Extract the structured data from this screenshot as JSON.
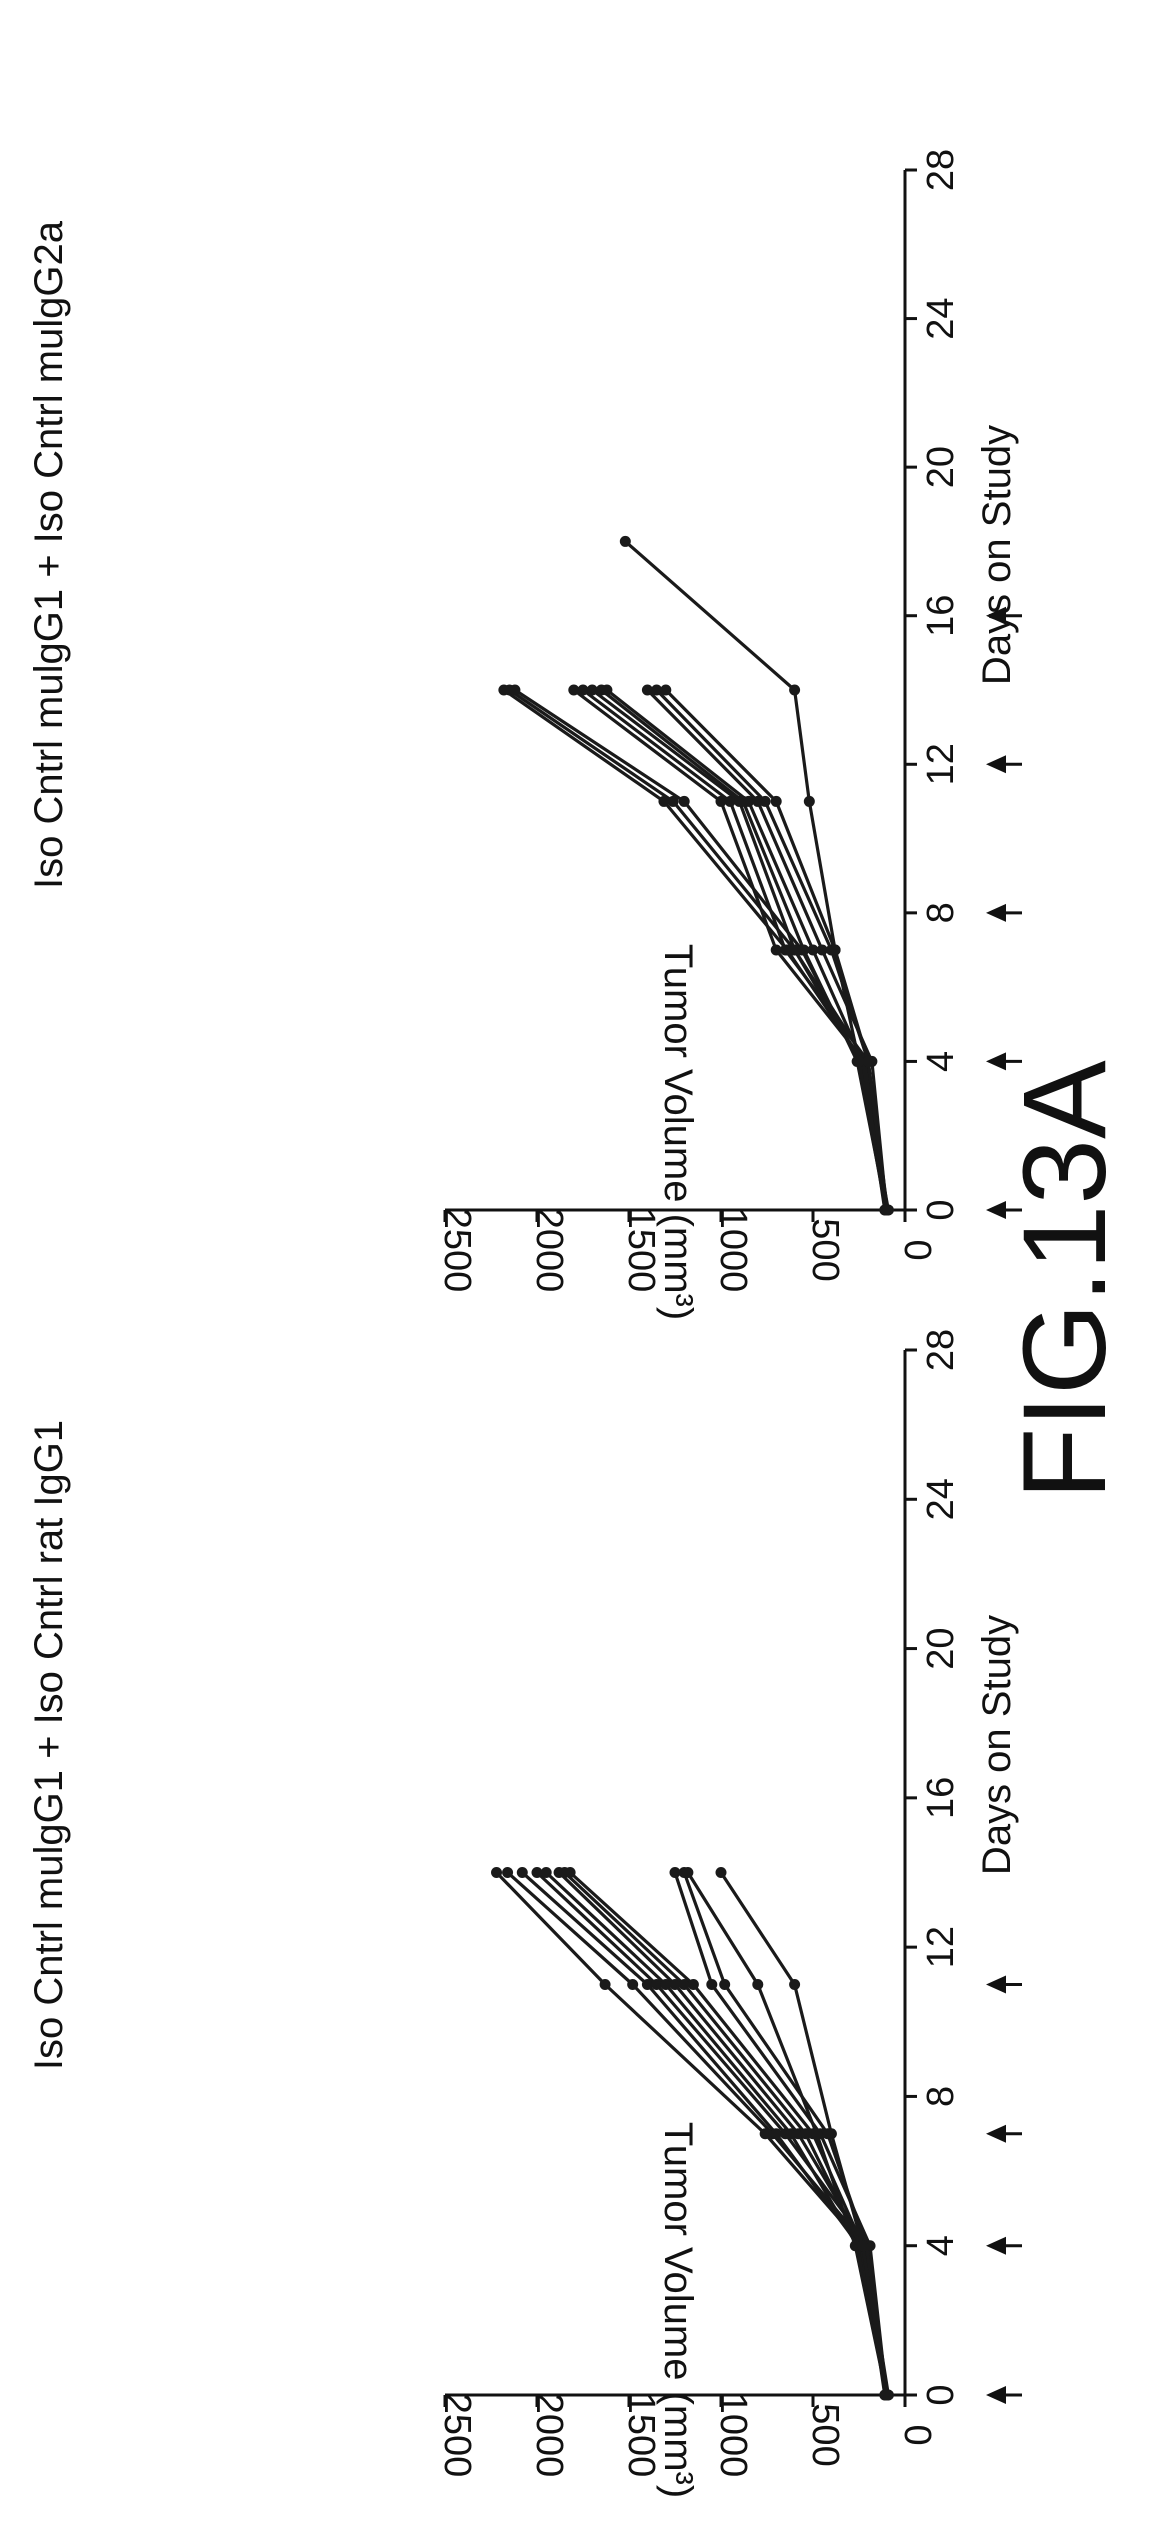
{
  "figure_label": "FIG.13A",
  "chart_data": [
    {
      "type": "line",
      "title": "Iso Cntrl mulgG1 + Iso Cntrl rat IgG1",
      "xlabel": "Days on Study",
      "ylabel": "Tumor Volume (mm³)",
      "xlim": [
        0,
        28
      ],
      "ylim": [
        0,
        2500
      ],
      "x_ticks": [
        "0",
        "4",
        "8",
        "12",
        "16",
        "20",
        "24",
        "28"
      ],
      "y_ticks": [
        "0",
        "500",
        "1000",
        "1500",
        "2000",
        "2500"
      ],
      "dosing_days": [
        0,
        4,
        7,
        11
      ],
      "x": [
        0,
        4,
        7,
        11,
        14
      ],
      "series": [
        {
          "values": [
            100,
            230,
            760,
            1630,
            2220
          ]
        },
        {
          "values": [
            100,
            210,
            720,
            1480,
            2160
          ]
        },
        {
          "values": [
            95,
            250,
            700,
            1400,
            2080
          ]
        },
        {
          "values": [
            105,
            200,
            650,
            1350,
            2000
          ]
        },
        {
          "values": [
            100,
            260,
            620,
            1300,
            1950
          ]
        },
        {
          "values": [
            90,
            220,
            580,
            1250,
            1880
          ]
        },
        {
          "values": [
            100,
            240,
            540,
            1200,
            1850
          ]
        },
        {
          "values": [
            110,
            230,
            500,
            1150,
            1820
          ]
        },
        {
          "values": [
            100,
            190,
            460,
            1050,
            1250
          ]
        },
        {
          "values": [
            95,
            210,
            420,
            980,
            1200
          ]
        },
        {
          "values": [
            100,
            270,
            480,
            800,
            1180
          ]
        },
        {
          "values": [
            105,
            230,
            400,
            600,
            1000
          ]
        }
      ]
    },
    {
      "type": "line",
      "title": "Iso Cntrl mulgG1 + Iso Cntrl mulgG2a",
      "xlabel": "Days on Study",
      "ylabel": "Tumor Volume (mm³)",
      "xlim": [
        0,
        28
      ],
      "ylim": [
        0,
        2500
      ],
      "x_ticks": [
        "0",
        "4",
        "8",
        "12",
        "16",
        "20",
        "24",
        "28"
      ],
      "y_ticks": [
        "0",
        "500",
        "1000",
        "1500",
        "2000",
        "2500"
      ],
      "dosing_days": [
        0,
        4,
        8,
        12,
        16
      ],
      "x": [
        0,
        4,
        7,
        11,
        14
      ],
      "series": [
        {
          "values": [
            100,
            230,
            640,
            1310,
            2180
          ]
        },
        {
          "values": [
            95,
            210,
            600,
            1260,
            2150
          ]
        },
        {
          "values": [
            100,
            250,
            560,
            1200,
            2120
          ]
        },
        {
          "values": [
            105,
            220,
            700,
            1000,
            1800
          ]
        },
        {
          "values": [
            100,
            200,
            650,
            950,
            1750
          ]
        },
        {
          "values": [
            90,
            240,
            600,
            900,
            1700
          ]
        },
        {
          "values": [
            100,
            260,
            550,
            880,
            1650
          ]
        },
        {
          "values": [
            110,
            230,
            500,
            850,
            1620
          ]
        },
        {
          "values": [
            100,
            180,
            450,
            800,
            1400
          ]
        },
        {
          "values": [
            95,
            200,
            400,
            760,
            1350
          ]
        },
        {
          "values": [
            105,
            250,
            380,
            700,
            1300
          ]
        }
      ],
      "extra_series": [
        {
          "x": [
            0,
            4,
            7,
            11,
            14,
            18
          ],
          "values": [
            100,
            200,
            380,
            520,
            600,
            1520
          ]
        }
      ]
    }
  ]
}
